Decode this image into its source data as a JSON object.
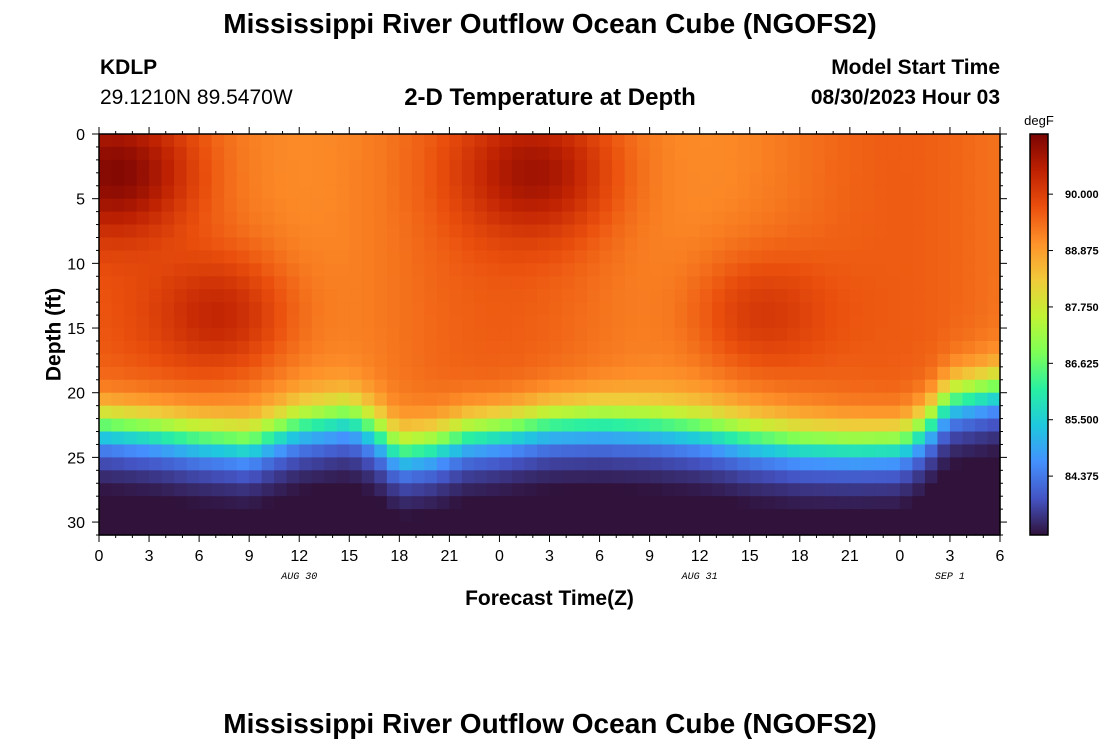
{
  "header": {
    "title": "Mississippi River Outflow Ocean Cube (NGOFS2)",
    "station": "KDLP",
    "coords": "29.1210N  89.5470W",
    "subtitle": "2-D Temperature at Depth",
    "model_start_label": "Model Start Time",
    "model_start_value": "08/30/2023 Hour 03"
  },
  "footer": {
    "title": "Mississippi River Outflow Ocean Cube (NGOFS2)"
  },
  "colors": {
    "colormap": [
      "#30123b",
      "#4454c4",
      "#4490fe",
      "#1fc8de",
      "#29efa2",
      "#7dff56",
      "#c1f334",
      "#f1ca3a",
      "#fe922a",
      "#ea4f0d",
      "#be2102",
      "#7a0403"
    ]
  },
  "chart_data": {
    "type": "heatmap",
    "title": "2-D Temperature at Depth",
    "xlabel": "Forecast Time(Z)",
    "ylabel": "Depth (ft)",
    "x_range_hours": [
      0,
      54
    ],
    "x_tick_hours": [
      0,
      3,
      6,
      9,
      12,
      15,
      18,
      21,
      24,
      27,
      30,
      33,
      36,
      39,
      42,
      45,
      48,
      51,
      54
    ],
    "x_tick_labels": [
      "0",
      "3",
      "6",
      "9",
      "12",
      "15",
      "18",
      "21",
      "0",
      "3",
      "6",
      "9",
      "12",
      "15",
      "18",
      "21",
      "0",
      "3",
      "6"
    ],
    "date_labels": [
      {
        "hour": 12,
        "text": "AUG 30"
      },
      {
        "hour": 36,
        "text": "AUG 31"
      },
      {
        "hour": 51,
        "text": "SEP 1"
      }
    ],
    "y_range_ft": [
      0,
      31
    ],
    "y_ticks": [
      0,
      5,
      10,
      15,
      20,
      25,
      30
    ],
    "y_tick_labels": [
      "0",
      "5",
      "10",
      "15",
      "20",
      "25",
      "30"
    ],
    "colorbar": {
      "unit": "degF",
      "range": [
        83.2,
        91.2
      ],
      "ticks": [
        90.0,
        88.875,
        87.75,
        86.625,
        85.5,
        84.375
      ],
      "tick_labels": [
        "90.000",
        "88.875",
        "87.750",
        "86.625",
        "85.500",
        "84.375"
      ]
    },
    "thermocline_depth_ft": [
      [
        0,
        20.6
      ],
      [
        3,
        21.0
      ],
      [
        6,
        21.6
      ],
      [
        9,
        22.0
      ],
      [
        12,
        20.6
      ],
      [
        15,
        20.0
      ],
      [
        16.5,
        21.0
      ],
      [
        18,
        22.6
      ],
      [
        20,
        22.2
      ],
      [
        22,
        21.3
      ],
      [
        24,
        21.0
      ],
      [
        27,
        20.4
      ],
      [
        30,
        20.3
      ],
      [
        33,
        20.5
      ],
      [
        36,
        20.9
      ],
      [
        39,
        21.6
      ],
      [
        42,
        22.0
      ],
      [
        45,
        22.1
      ],
      [
        48,
        22.0
      ],
      [
        49.5,
        20.8
      ],
      [
        51,
        18.6
      ],
      [
        54,
        17.8
      ]
    ],
    "surface_warm_cores": [
      {
        "hour": 1,
        "depth_ft": 3,
        "value": 91.1
      },
      {
        "hour": 7,
        "depth_ft": 14,
        "value": 90.4
      },
      {
        "hour": 26,
        "depth_ft": 3,
        "value": 90.8
      },
      {
        "hour": 40,
        "depth_ft": 14,
        "value": 90.1
      }
    ]
  }
}
